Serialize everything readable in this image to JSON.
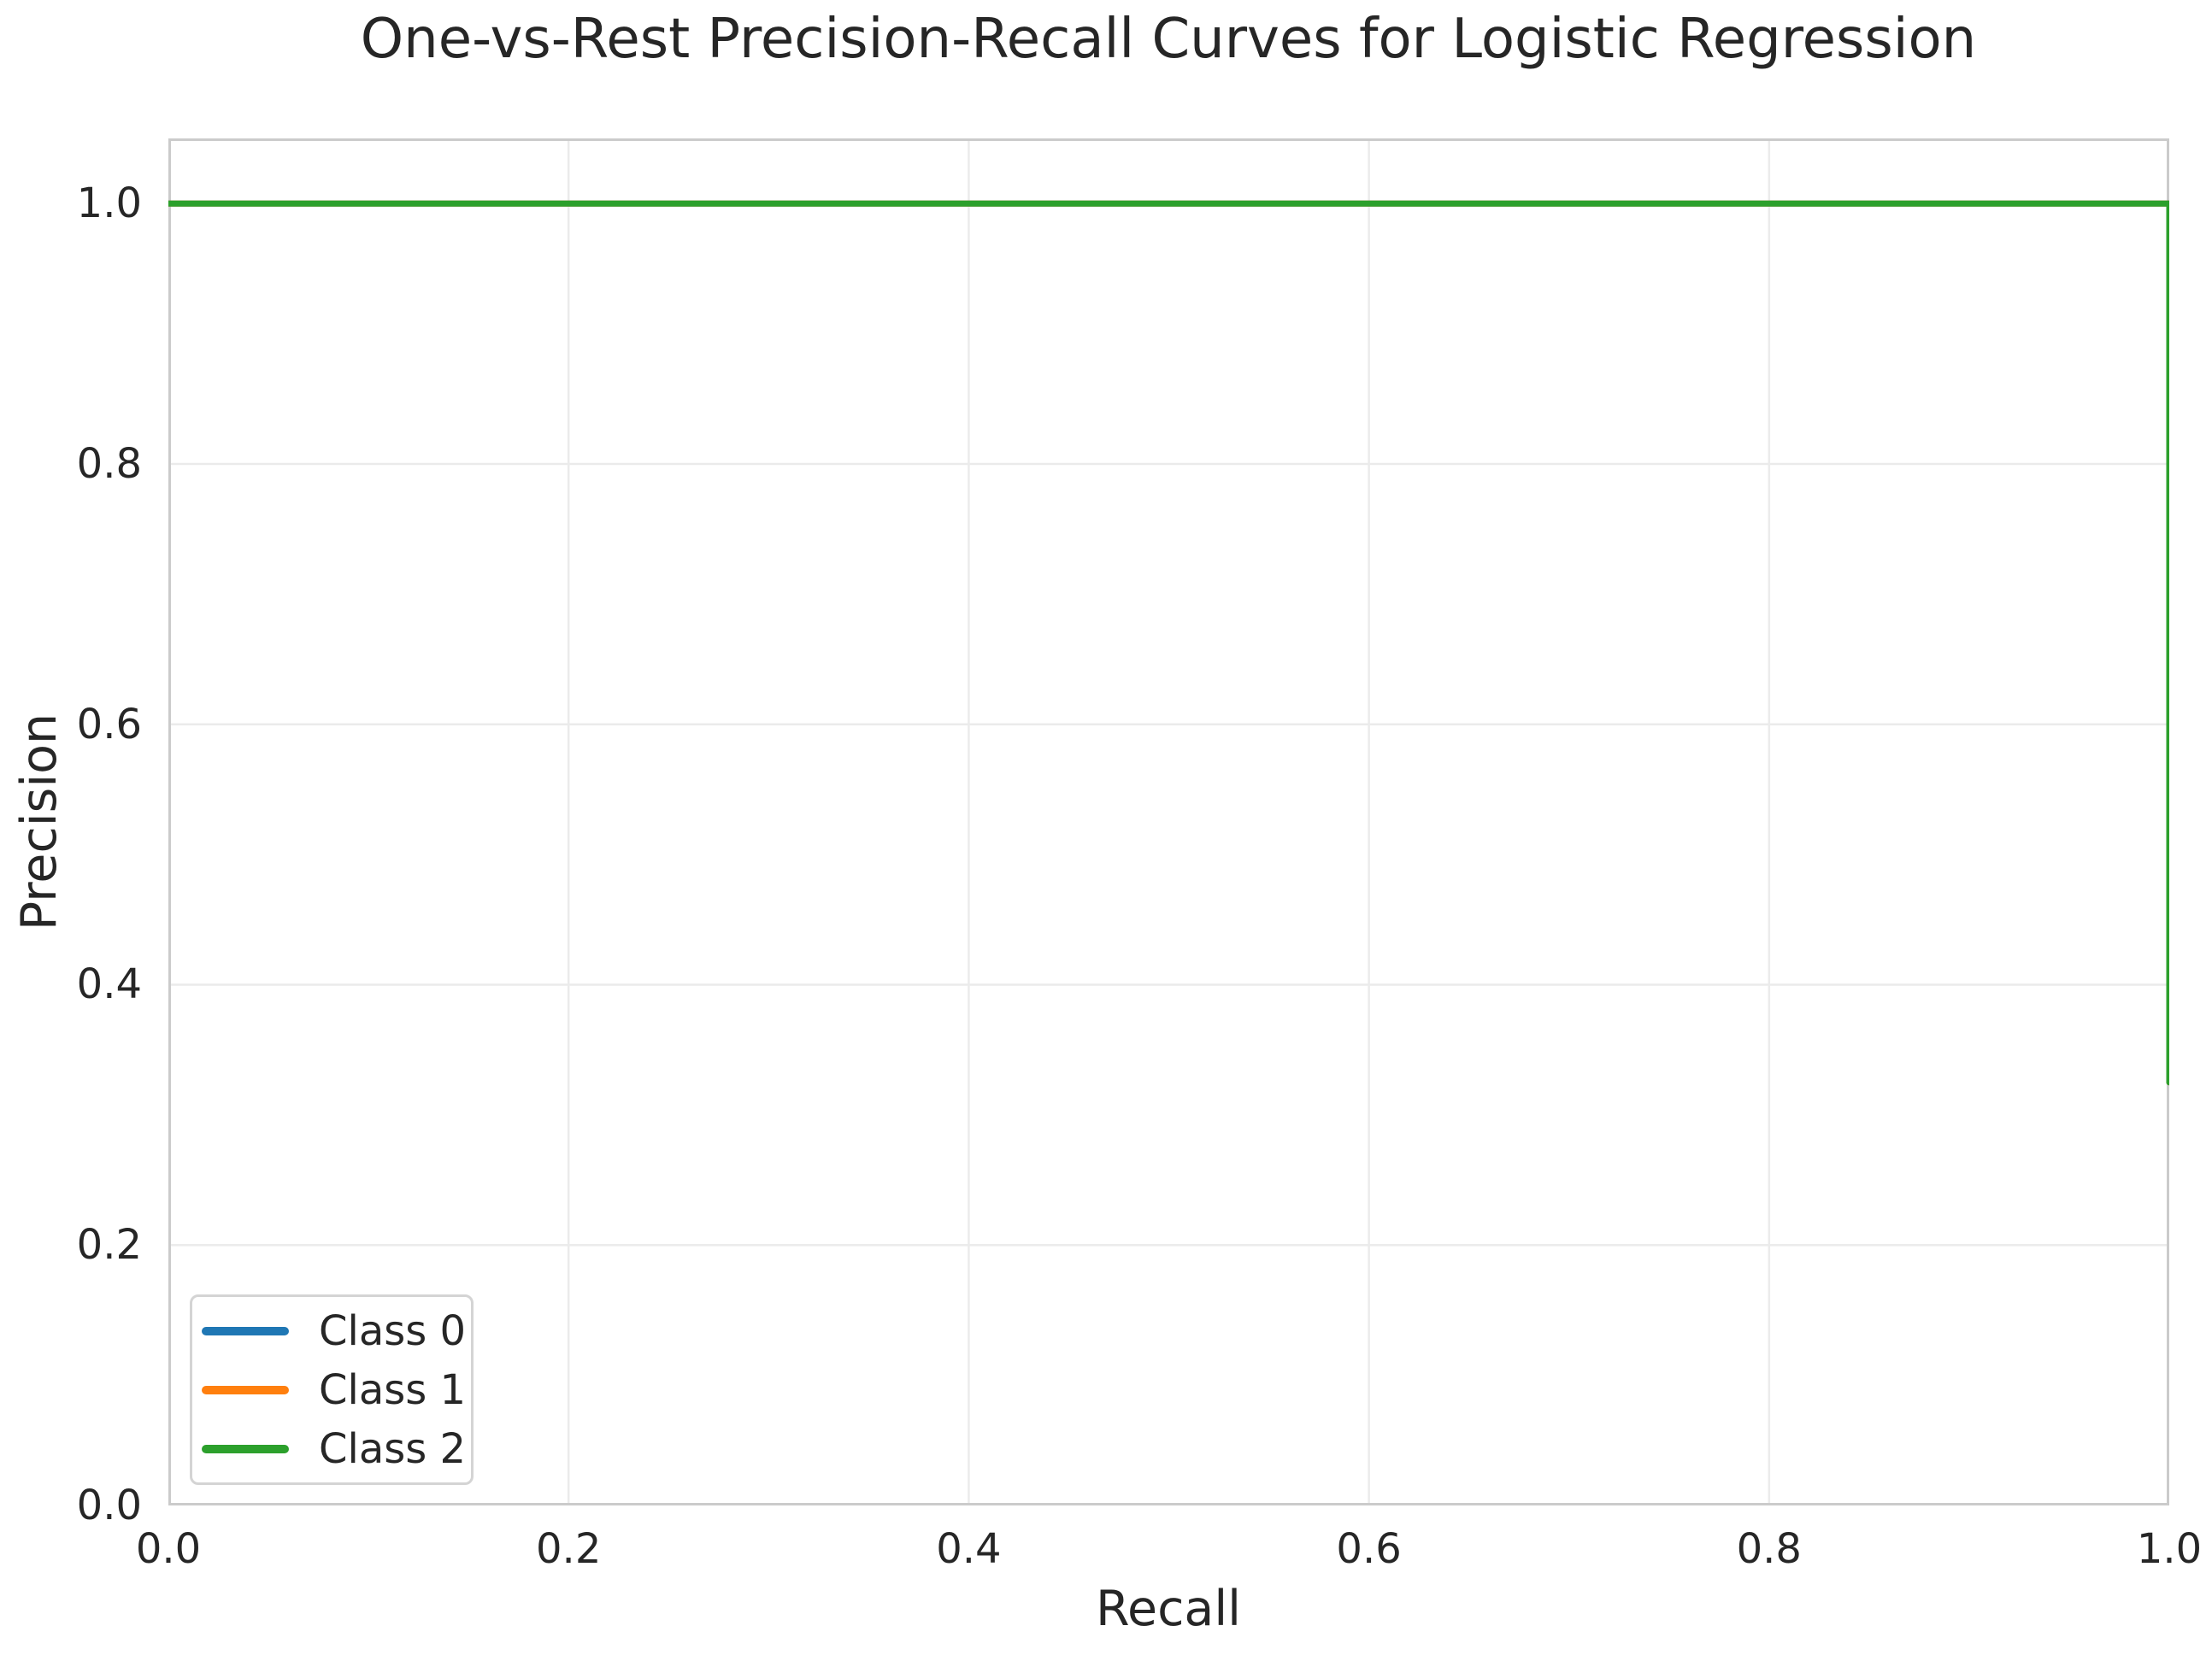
{
  "chart_data": {
    "type": "line",
    "title": "One-vs-Rest Precision-Recall Curves for Logistic Regression",
    "xlabel": "Recall",
    "ylabel": "Precision",
    "xlim": [
      0.0,
      1.0
    ],
    "ylim": [
      0.0,
      1.05
    ],
    "grid": true,
    "x_ticks": {
      "values": [
        0.0,
        0.2,
        0.4,
        0.6,
        0.8,
        1.0
      ],
      "labels": [
        "0.0",
        "0.2",
        "0.4",
        "0.6",
        "0.8",
        "1.0"
      ]
    },
    "y_ticks": {
      "values": [
        0.0,
        0.2,
        0.4,
        0.6,
        0.8,
        1.0
      ],
      "labels": [
        "0.0",
        "0.2",
        "0.4",
        "0.6",
        "0.8",
        "1.0"
      ]
    },
    "series": [
      {
        "name": "Class 0",
        "color": "#1f77b4",
        "points": [
          [
            0.0,
            1.0
          ],
          [
            1.0,
            1.0
          ],
          [
            1.0,
            0.325
          ]
        ]
      },
      {
        "name": "Class 1",
        "color": "#ff7f0e",
        "points": [
          [
            0.0,
            1.0
          ],
          [
            1.0,
            1.0
          ],
          [
            1.0,
            0.325
          ]
        ]
      },
      {
        "name": "Class 2",
        "color": "#2ca02c",
        "points": [
          [
            0.0,
            1.0
          ],
          [
            1.0,
            1.0
          ],
          [
            1.0,
            0.325
          ]
        ]
      }
    ],
    "legend": {
      "position": "lower left",
      "entries": [
        "Class 0",
        "Class 1",
        "Class 2"
      ]
    },
    "style": {
      "background": "#ffffff",
      "text_color": "#262626",
      "grid_color": "#ebebeb",
      "spine_color": "#cbcbcb",
      "legend_border_color": "#d4d4d4",
      "line_width": 7
    }
  }
}
